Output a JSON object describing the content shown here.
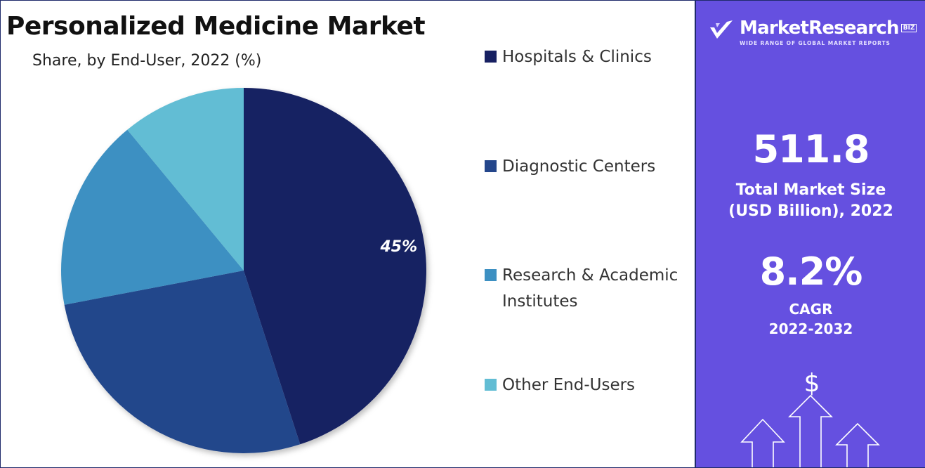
{
  "header": {
    "title": "Personalized Medicine Market",
    "subtitle": "Share, by End-User, 2022 (%)"
  },
  "chart_data": {
    "type": "pie",
    "title": "Personalized Medicine Market",
    "subtitle": "Share, by End-User, 2022 (%)",
    "legend_position": "right",
    "slices": [
      {
        "label": "Hospitals & Clinics",
        "value": 45,
        "color": "#172062",
        "data_label": "45%"
      },
      {
        "label": "Diagnostic Centers",
        "value": 27,
        "color": "#24468b",
        "data_label": ""
      },
      {
        "label": "Research & Academic Institutes",
        "value": 17,
        "color": "#3d90c2",
        "data_label": ""
      },
      {
        "label": "Other End-Users",
        "value": 11,
        "color": "#62bdd4",
        "data_label": ""
      }
    ]
  },
  "legend": {
    "items": [
      {
        "label": "Hospitals & Clinics",
        "color": "#172062"
      },
      {
        "label": "Diagnostic Centers",
        "color": "#24468b"
      },
      {
        "label": "Research & Academic Institutes",
        "color": "#3d90c2"
      },
      {
        "label": "Other End-Users",
        "color": "#62bdd4"
      }
    ]
  },
  "brand": {
    "name": "MarketResearch",
    "badge": "BIZ",
    "tagline": "WIDE RANGE OF GLOBAL MARKET REPORTS"
  },
  "stats": {
    "market_size_value": "511.8",
    "market_size_label": "Total Market Size (USD Billion), 2022",
    "cagr_value": "8.2%",
    "cagr_label_line1": "CAGR",
    "cagr_label_line2": "2022-2032"
  },
  "decoration": {
    "currency_symbol": "$",
    "icon": "growth-arrows-icon"
  },
  "colors": {
    "side_panel": "#6550e0",
    "frame": "#1f2a6b"
  }
}
